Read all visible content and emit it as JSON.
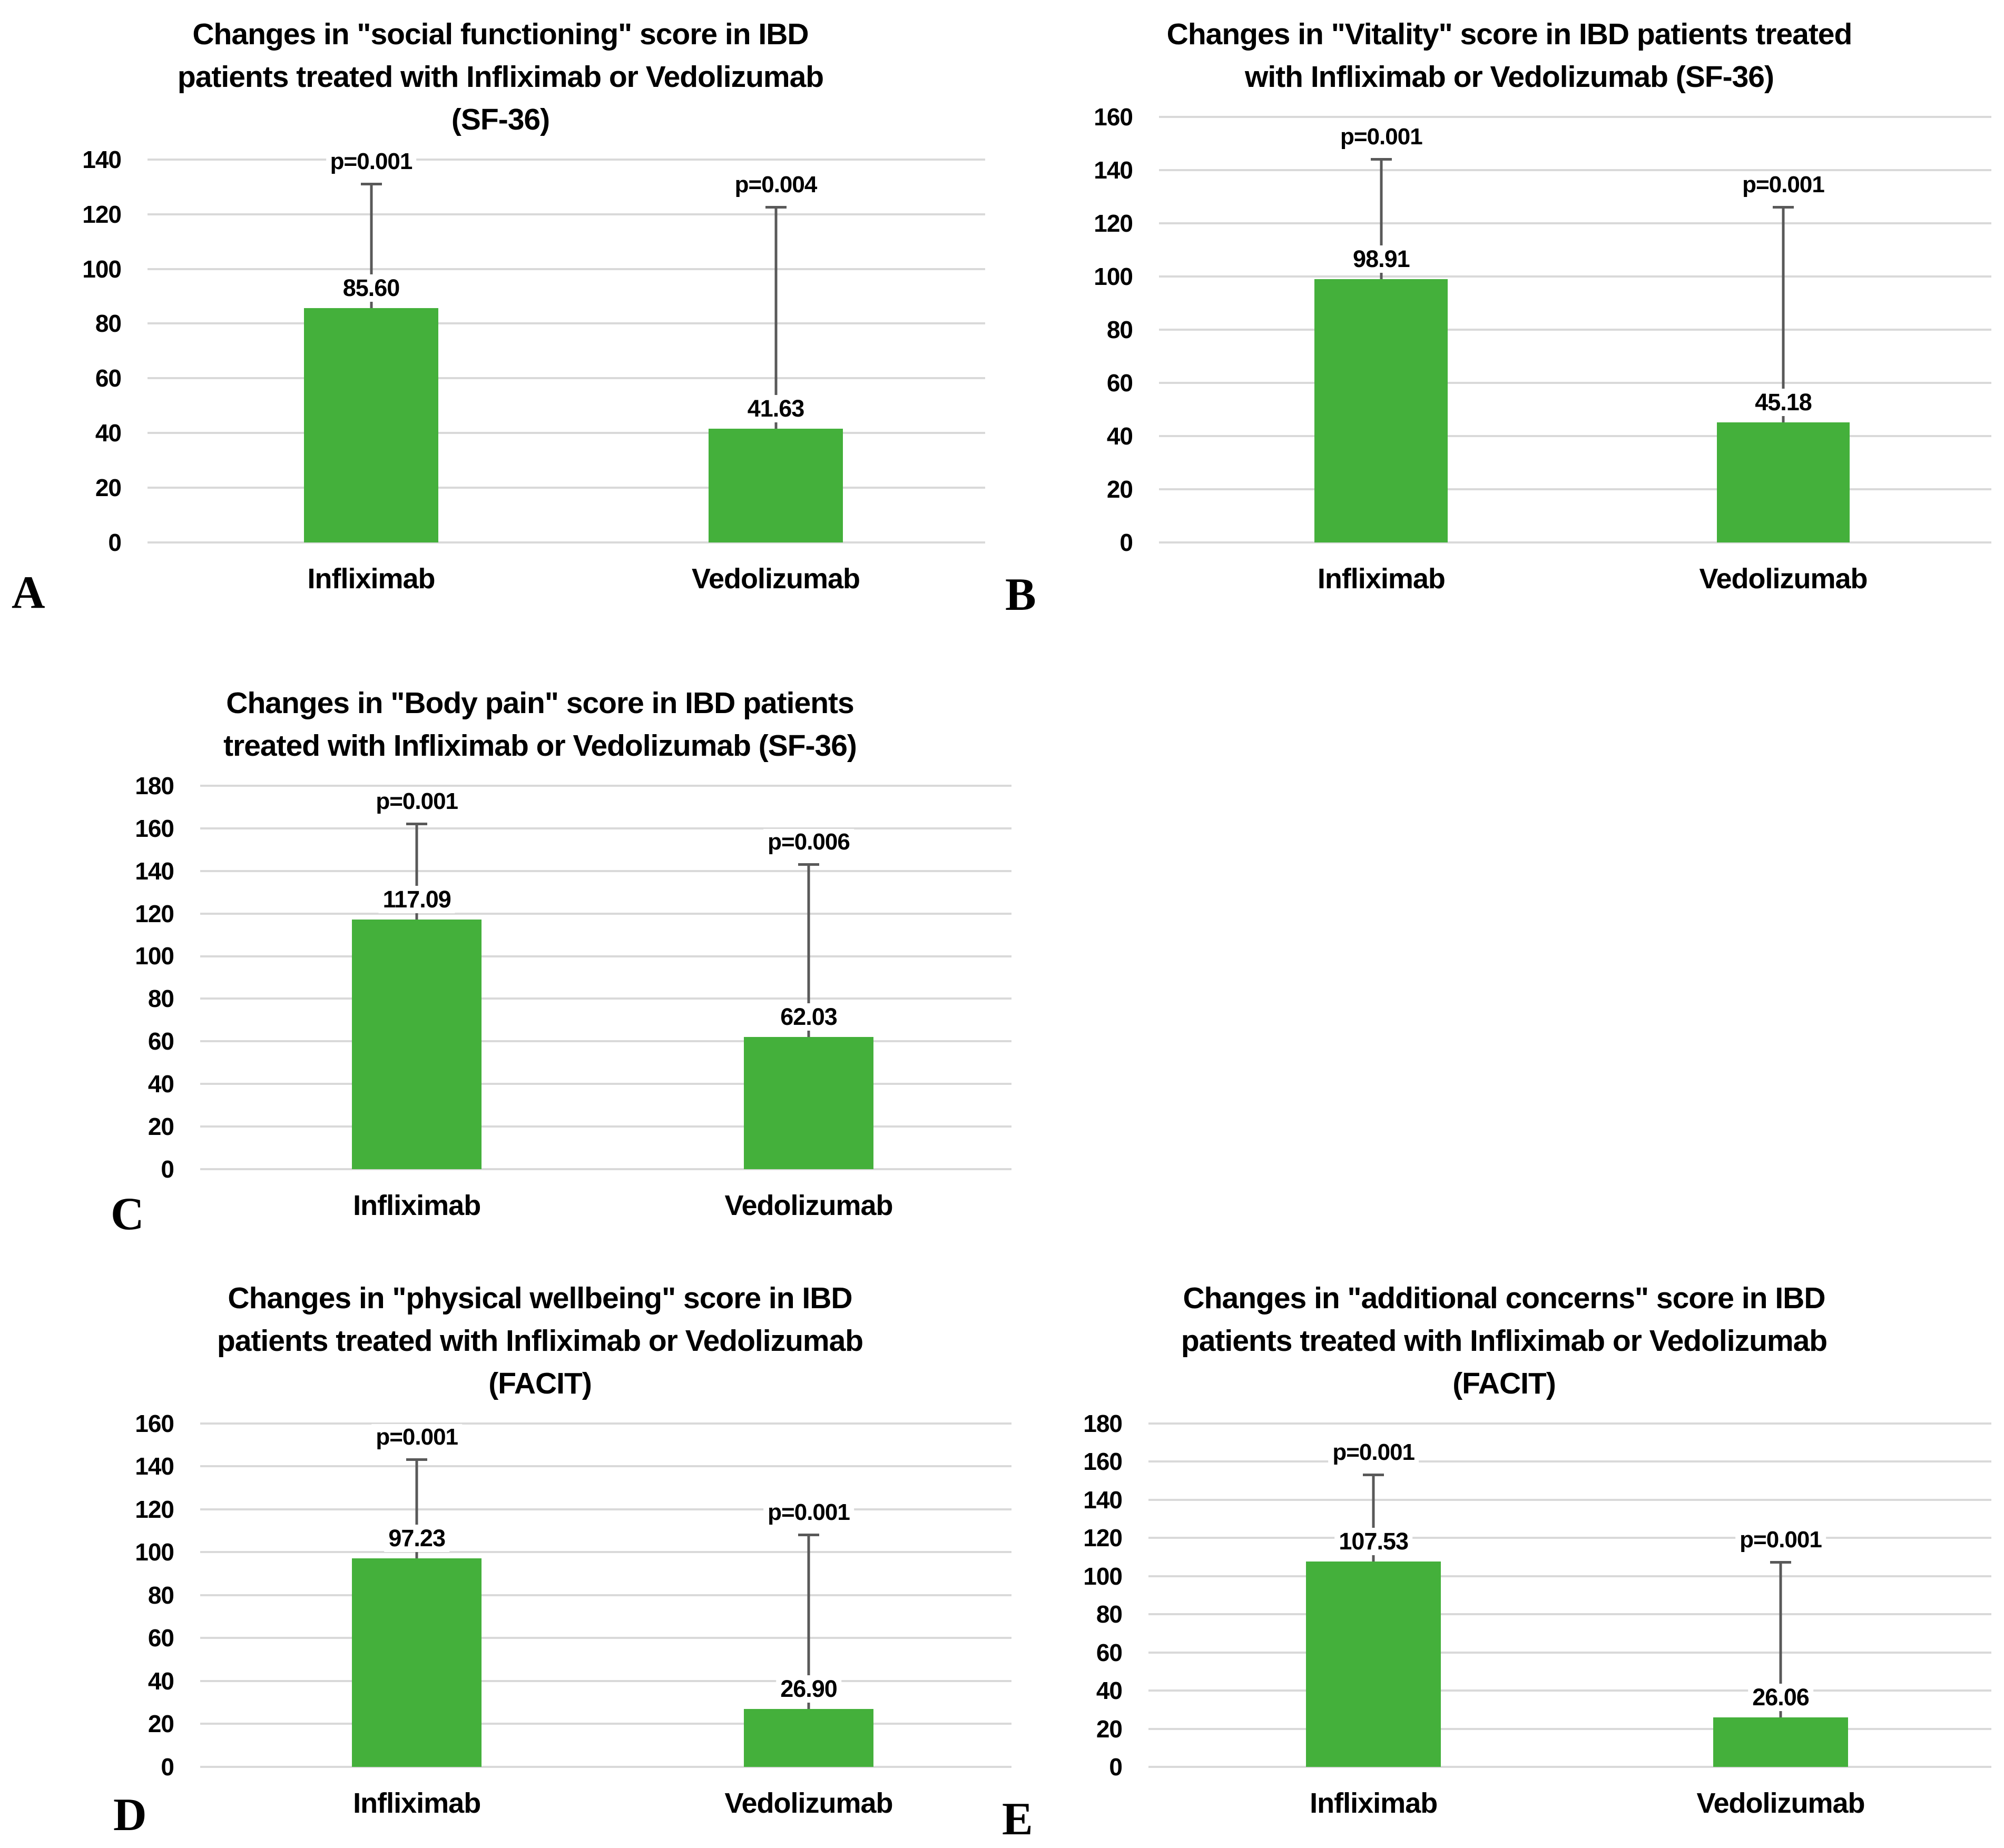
{
  "style": {
    "bar_color": "#44b03b",
    "error_bar_color": "#595959",
    "gridline_color": "#d9d9d9",
    "text_color": "#000000",
    "background_color": "#ffffff"
  },
  "chart_data": [
    {
      "panel": "A",
      "type": "bar",
      "title": "Changes in \"social functioning\" score in IBD patients treated with Infliximab or Vedolizumab (SF-36)",
      "title_lines": [
        "Changes in \"social functioning\" score in IBD",
        "patients treated with Infliximab or Vedolizumab",
        "(SF-36)"
      ],
      "categories": [
        "Infliximab",
        "Vedolizumab"
      ],
      "values": [
        85.6,
        41.63
      ],
      "value_labels": [
        "85.60",
        "41.63"
      ],
      "p_labels": [
        "p=0.001",
        "p=0.004"
      ],
      "error_bar_tops": [
        131,
        122.5
      ],
      "ylim": [
        0,
        140
      ],
      "yticks": [
        0,
        20,
        40,
        60,
        80,
        100,
        120,
        140
      ],
      "grid": true,
      "legend": false
    },
    {
      "panel": "B",
      "type": "bar",
      "title": "Changes in \"Vitality\" score in IBD patients treated with Infliximab or Vedolizumab (SF-36)",
      "title_lines": [
        "Changes in \"Vitality\" score in IBD patients treated",
        "with Infliximab or Vedolizumab (SF-36)"
      ],
      "categories": [
        "Infliximab",
        "Vedolizumab"
      ],
      "values": [
        98.91,
        45.18
      ],
      "value_labels": [
        "98.91",
        "45.18"
      ],
      "p_labels": [
        "p=0.001",
        "p=0.001"
      ],
      "error_bar_tops": [
        144,
        126
      ],
      "ylim": [
        0,
        160
      ],
      "yticks": [
        0,
        20,
        40,
        60,
        80,
        100,
        120,
        140,
        160
      ],
      "grid": true,
      "legend": false
    },
    {
      "panel": "C",
      "type": "bar",
      "title": "Changes in \"Body pain\" score in IBD patients treated with Infliximab or Vedolizumab (SF-36)",
      "title_lines": [
        "Changes in \"Body pain\" score in IBD patients",
        "treated with Infliximab or Vedolizumab (SF-36)"
      ],
      "categories": [
        "Infliximab",
        "Vedolizumab"
      ],
      "values": [
        117.09,
        62.03
      ],
      "value_labels": [
        "117.09",
        "62.03"
      ],
      "p_labels": [
        "p=0.001",
        "p=0.006"
      ],
      "error_bar_tops": [
        162,
        143
      ],
      "ylim": [
        0,
        180
      ],
      "yticks": [
        0,
        20,
        40,
        60,
        80,
        100,
        120,
        140,
        160,
        180
      ],
      "grid": true,
      "legend": false
    },
    {
      "panel": "D",
      "type": "bar",
      "title": "Changes in \"physical wellbeing\" score in IBD patients treated with Infliximab or Vedolizumab (FACIT)",
      "title_lines": [
        "Changes in \"physical wellbeing\" score in IBD",
        "patients treated with Infliximab or Vedolizumab",
        "(FACIT)"
      ],
      "categories": [
        "Infliximab",
        "Vedolizumab"
      ],
      "values": [
        97.23,
        26.9
      ],
      "value_labels": [
        "97.23",
        "26.90"
      ],
      "p_labels": [
        "p=0.001",
        "p=0.001"
      ],
      "error_bar_tops": [
        143,
        108
      ],
      "ylim": [
        0,
        160
      ],
      "yticks": [
        0,
        20,
        40,
        60,
        80,
        100,
        120,
        140,
        160
      ],
      "grid": true,
      "legend": false
    },
    {
      "panel": "E",
      "type": "bar",
      "title": "Changes in \"additional concerns\" score in IBD patients treated with Infliximab or Vedolizumab (FACIT)",
      "title_lines": [
        "Changes in \"additional concerns\" score in IBD",
        "patients treated with Infliximab or Vedolizumab",
        "(FACIT)"
      ],
      "categories": [
        "Infliximab",
        "Vedolizumab"
      ],
      "values": [
        107.53,
        26.06
      ],
      "value_labels": [
        "107.53",
        "26.06"
      ],
      "p_labels": [
        "p=0.001",
        "p=0.001"
      ],
      "error_bar_tops": [
        153,
        107
      ],
      "ylim": [
        0,
        180
      ],
      "yticks": [
        0,
        20,
        40,
        60,
        80,
        100,
        120,
        140,
        160,
        180
      ],
      "grid": true,
      "legend": false
    }
  ]
}
